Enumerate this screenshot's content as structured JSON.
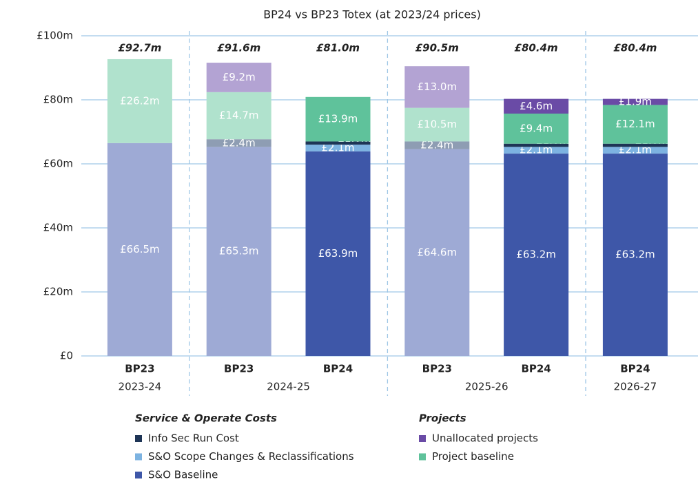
{
  "chart_data": {
    "type": "stacked-bar",
    "title": "BP24 vs BP23 Totex (at 2023/24 prices)",
    "groups": [
      {
        "label": "2023-24",
        "bars": [
          "BP23"
        ]
      },
      {
        "label": "2024-25",
        "bars": [
          "BP23",
          "BP24"
        ]
      },
      {
        "label": "2025-26",
        "bars": [
          "BP23",
          "BP24"
        ]
      },
      {
        "label": "2026-27",
        "bars": [
          "BP24"
        ]
      }
    ],
    "series": [
      {
        "color": "#9eaad5",
        "values": [
          66.5,
          65.3,
          null,
          64.6,
          null,
          null
        ],
        "value_labels": [
          "£66.5m",
          "£65.3m",
          null,
          "£64.6m",
          null,
          null
        ]
      },
      {
        "color": "#8e9db3",
        "values": [
          null,
          2.4,
          null,
          2.4,
          null,
          null
        ],
        "value_labels": [
          null,
          "£2.4m",
          null,
          "£2.4m",
          null,
          null
        ]
      },
      {
        "color": "#b0e2cd",
        "values": [
          26.2,
          14.7,
          null,
          10.5,
          null,
          null
        ],
        "value_labels": [
          "£26.2m",
          "£14.7m",
          null,
          "£10.5m",
          null,
          null
        ]
      },
      {
        "color": "#b3a3d3",
        "values": [
          null,
          9.2,
          null,
          13.0,
          null,
          null
        ],
        "value_labels": [
          null,
          "£9.2m",
          null,
          "£13.0m",
          null,
          null
        ]
      },
      {
        "name": "S&O Baseline",
        "legend_group": 0,
        "color": "#3e57a8",
        "values": [
          null,
          null,
          63.9,
          null,
          63.2,
          63.2
        ],
        "value_labels": [
          null,
          null,
          "£63.9m",
          null,
          "£63.2m",
          "£63.2m"
        ]
      },
      {
        "name": "S&O Scope Changes & Reclassifications",
        "legend_group": 0,
        "color": "#7db3e1",
        "values": [
          null,
          null,
          2.1,
          null,
          2.1,
          2.1
        ],
        "value_labels": [
          null,
          null,
          "£2.1m",
          null,
          "£2.1m",
          "£2.1m"
        ]
      },
      {
        "name": "Info Sec Run Cost",
        "legend_group": 0,
        "color": "#1e3556",
        "values": [
          null,
          null,
          1.0,
          null,
          1.0,
          1.0
        ],
        "value_labels": [
          null,
          null,
          "£1.0m",
          null,
          "£1.0m",
          "£1.0m"
        ]
      },
      {
        "name": "Project baseline",
        "legend_group": 1,
        "color": "#5fc29b",
        "values": [
          null,
          null,
          13.9,
          null,
          9.4,
          12.1
        ],
        "value_labels": [
          null,
          null,
          "£13.9m",
          null,
          "£9.4m",
          "£12.1m"
        ]
      },
      {
        "name": "Unallocated projects",
        "legend_group": 1,
        "color": "#6a4ba6",
        "values": [
          null,
          null,
          null,
          null,
          4.6,
          1.9
        ],
        "value_labels": [
          null,
          null,
          null,
          null,
          "£4.6m",
          "£1.9m"
        ]
      }
    ],
    "totals": {
      "values": [
        92.7,
        91.6,
        81.0,
        90.5,
        80.4,
        80.4
      ],
      "value_labels": [
        "£92.7m",
        "£91.6m",
        "£81.0m",
        "£90.5m",
        "£80.4m",
        "£80.4m"
      ]
    },
    "legend_groups": [
      "Service & Operate Costs",
      "Projects"
    ],
    "ylim": [
      0,
      100
    ],
    "yticks": [
      {
        "value": 0,
        "label": "£0"
      },
      {
        "value": 20,
        "label": "£20m"
      },
      {
        "value": 40,
        "label": "£40m"
      },
      {
        "value": 60,
        "label": "£60m"
      },
      {
        "value": 80,
        "label": "£80m"
      },
      {
        "value": 100,
        "label": "£100m"
      }
    ],
    "grid": true
  }
}
